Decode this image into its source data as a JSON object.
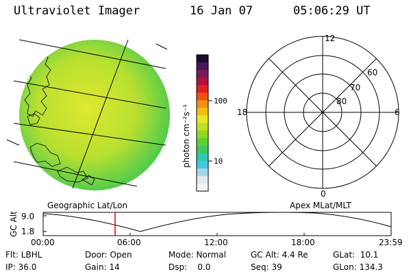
{
  "header": {
    "title": "Ultraviolet Imager",
    "date": "16 Jan 07",
    "time": "05:06:29 UT"
  },
  "colorbar": {
    "label": "photon cm⁻²s⁻¹",
    "ticks": [
      "100",
      "10"
    ],
    "colors": [
      "#1a0a2e",
      "#4b1560",
      "#7a1a5a",
      "#b0103a",
      "#e02020",
      "#f05010",
      "#f09010",
      "#f0c010",
      "#e8e820",
      "#c0e020",
      "#90d820",
      "#60d030",
      "#40c860",
      "#30c8b0",
      "#40c8e0",
      "#a0d8e8",
      "#e0e8f0",
      "#f4f4f4"
    ]
  },
  "earth_map": {
    "disk_colors": {
      "center": "#d8e830",
      "edge": "#40c850"
    },
    "caption": "Geographic Lat/Lon"
  },
  "polar_plot": {
    "caption": "Apex MLat/MLT",
    "mlt_labels": [
      "12",
      "18",
      "6",
      "0"
    ],
    "lat_labels": [
      "60",
      "70",
      "80"
    ]
  },
  "orbit": {
    "ylabel": "GC Alt",
    "yticks": [
      "9.0",
      "1.8"
    ],
    "xticks": [
      "00:00",
      "06:00",
      "12:00",
      "18:00",
      "23:59"
    ],
    "marker_color": "#e00000"
  },
  "footer": {
    "flt": "Flt: LBHL",
    "ip": "IP: 36.0",
    "door": "Door: Open",
    "gain": "Gain: 14",
    "mode": "Mode: Normal",
    "dsp": "Dsp:    0.0",
    "gcalt": "GC Alt: 4.4 Re",
    "seq": "Seq: 39",
    "glat": "GLat:  10.1",
    "glon": "GLon: 134.3"
  }
}
